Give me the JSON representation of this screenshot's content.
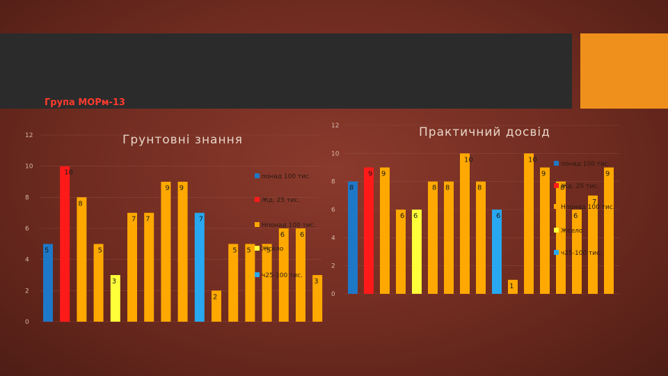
{
  "header": {
    "group_label": "Група МОРм-13"
  },
  "colors": {
    "header_bar": "#2b2b2b",
    "accent": "#f0901c",
    "group_label": "#ff3b2e"
  },
  "chart_data": [
    {
      "type": "bar",
      "title": "Грунтовні знання",
      "ylim": [
        0,
        12
      ],
      "yticks": [
        0,
        2,
        4,
        6,
        8,
        10,
        12
      ],
      "grid": true,
      "values": [
        5,
        10,
        8,
        5,
        3,
        7,
        7,
        9,
        9,
        7,
        2,
        5,
        5,
        5,
        6,
        6,
        3
      ],
      "colors": [
        "#1e78c8",
        "#ff1a1a",
        "#ffa800",
        "#ffa800",
        "#ffff3a",
        "#ffa800",
        "#ffa800",
        "#ffa800",
        "#ffa800",
        "#28a8f0",
        "#ffa800",
        "#ffa800",
        "#ffa800",
        "#ffa800",
        "#ffa800",
        "#ffa800",
        "#ffa800"
      ],
      "legend": [
        {
          "label": "понад 100 тис.",
          "color": "#1e78c8"
        },
        {
          "label": "Жд. 25 тис.",
          "color": "#ff1a1a"
        },
        {
          "label": "Нпонад 100 тис.",
          "color": "#ffa800"
        },
        {
          "label": "Жсело",
          "color": "#ffff3a"
        },
        {
          "label": "ч25-100 тис.",
          "color": "#28a8f0"
        }
      ]
    },
    {
      "type": "bar",
      "title": "Практичний досвід",
      "ylim": [
        0,
        12
      ],
      "yticks": [
        0,
        2,
        4,
        6,
        8,
        10,
        12
      ],
      "grid": true,
      "values": [
        8,
        9,
        9,
        6,
        6,
        8,
        8,
        10,
        8,
        6,
        1,
        10,
        9,
        8,
        6,
        7,
        9
      ],
      "colors": [
        "#1e78c8",
        "#ff1a1a",
        "#ffa800",
        "#ffa800",
        "#ffff3a",
        "#ffa800",
        "#ffa800",
        "#ffa800",
        "#ffa800",
        "#28a8f0",
        "#ffa800",
        "#ffa800",
        "#ffa800",
        "#ffa800",
        "#ffa800",
        "#ffa800",
        "#ffa800"
      ],
      "legend": [
        {
          "label": "понад 100 тис.",
          "color": "#1e78c8"
        },
        {
          "label": "Жд. 25 тис.",
          "color": "#ff1a1a"
        },
        {
          "label": "Нпонад 100 тис.",
          "color": "#ffa800"
        },
        {
          "label": "Жсело",
          "color": "#ffff3a"
        },
        {
          "label": "ч25-100 тис.",
          "color": "#28a8f0"
        }
      ]
    }
  ]
}
